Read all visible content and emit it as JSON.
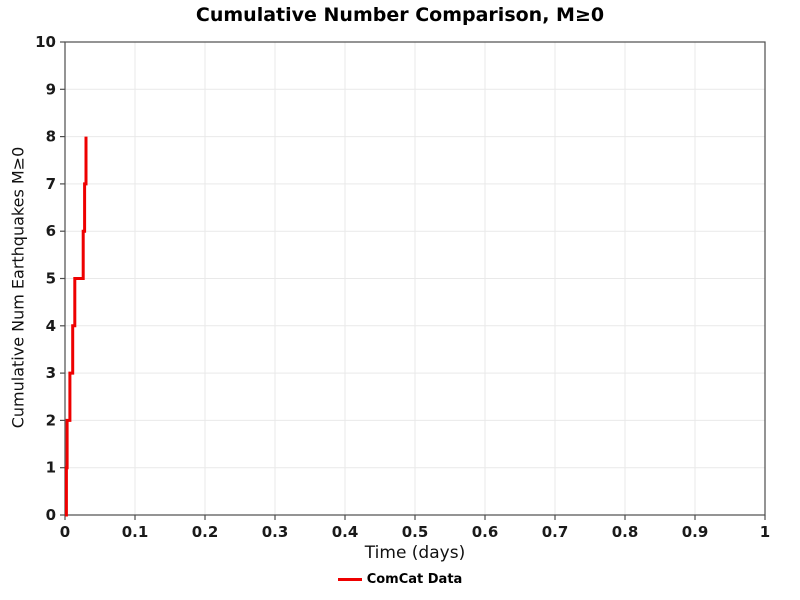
{
  "title": "Cumulative Number Comparison, M≥0",
  "chart_data": {
    "type": "line",
    "subtype": "step-cumulative",
    "title": "Cumulative Number Comparison, M≥0",
    "xlabel": "Time (days)",
    "ylabel": "Cumulative Num Earthquakes M≥0",
    "xlim": [
      0,
      1
    ],
    "ylim": [
      0,
      10
    ],
    "x_tick_values": [
      0,
      0.1,
      0.2,
      0.3,
      0.4,
      0.5,
      0.6,
      0.7,
      0.8,
      0.9,
      1
    ],
    "x_tick_labels": [
      "0",
      "0.1",
      "0.2",
      "0.3",
      "0.4",
      "0.5",
      "0.6",
      "0.7",
      "0.8",
      "0.9",
      "1"
    ],
    "y_tick_values": [
      0,
      1,
      2,
      3,
      4,
      5,
      6,
      7,
      8,
      9,
      10
    ],
    "y_tick_labels": [
      "0",
      "1",
      "2",
      "3",
      "4",
      "5",
      "6",
      "7",
      "8",
      "9",
      "10"
    ],
    "grid": true,
    "grid_color": "#e9e9e9",
    "spine_color": "#4d4d4d",
    "legend_position": "bottom-center",
    "series": [
      {
        "name": "ComCat Data",
        "color": "#ee0000",
        "line_width": 3,
        "start": {
          "t": 0,
          "count": 0
        },
        "event_times_days": [
          0.002,
          0.003,
          0.007,
          0.011,
          0.014,
          0.026,
          0.028,
          0.03
        ],
        "cumulative_counts": [
          1,
          2,
          3,
          4,
          5,
          6,
          7,
          8
        ]
      }
    ]
  },
  "legend": {
    "entries": [
      {
        "label": "ComCat Data",
        "color": "#ee0000"
      }
    ]
  }
}
